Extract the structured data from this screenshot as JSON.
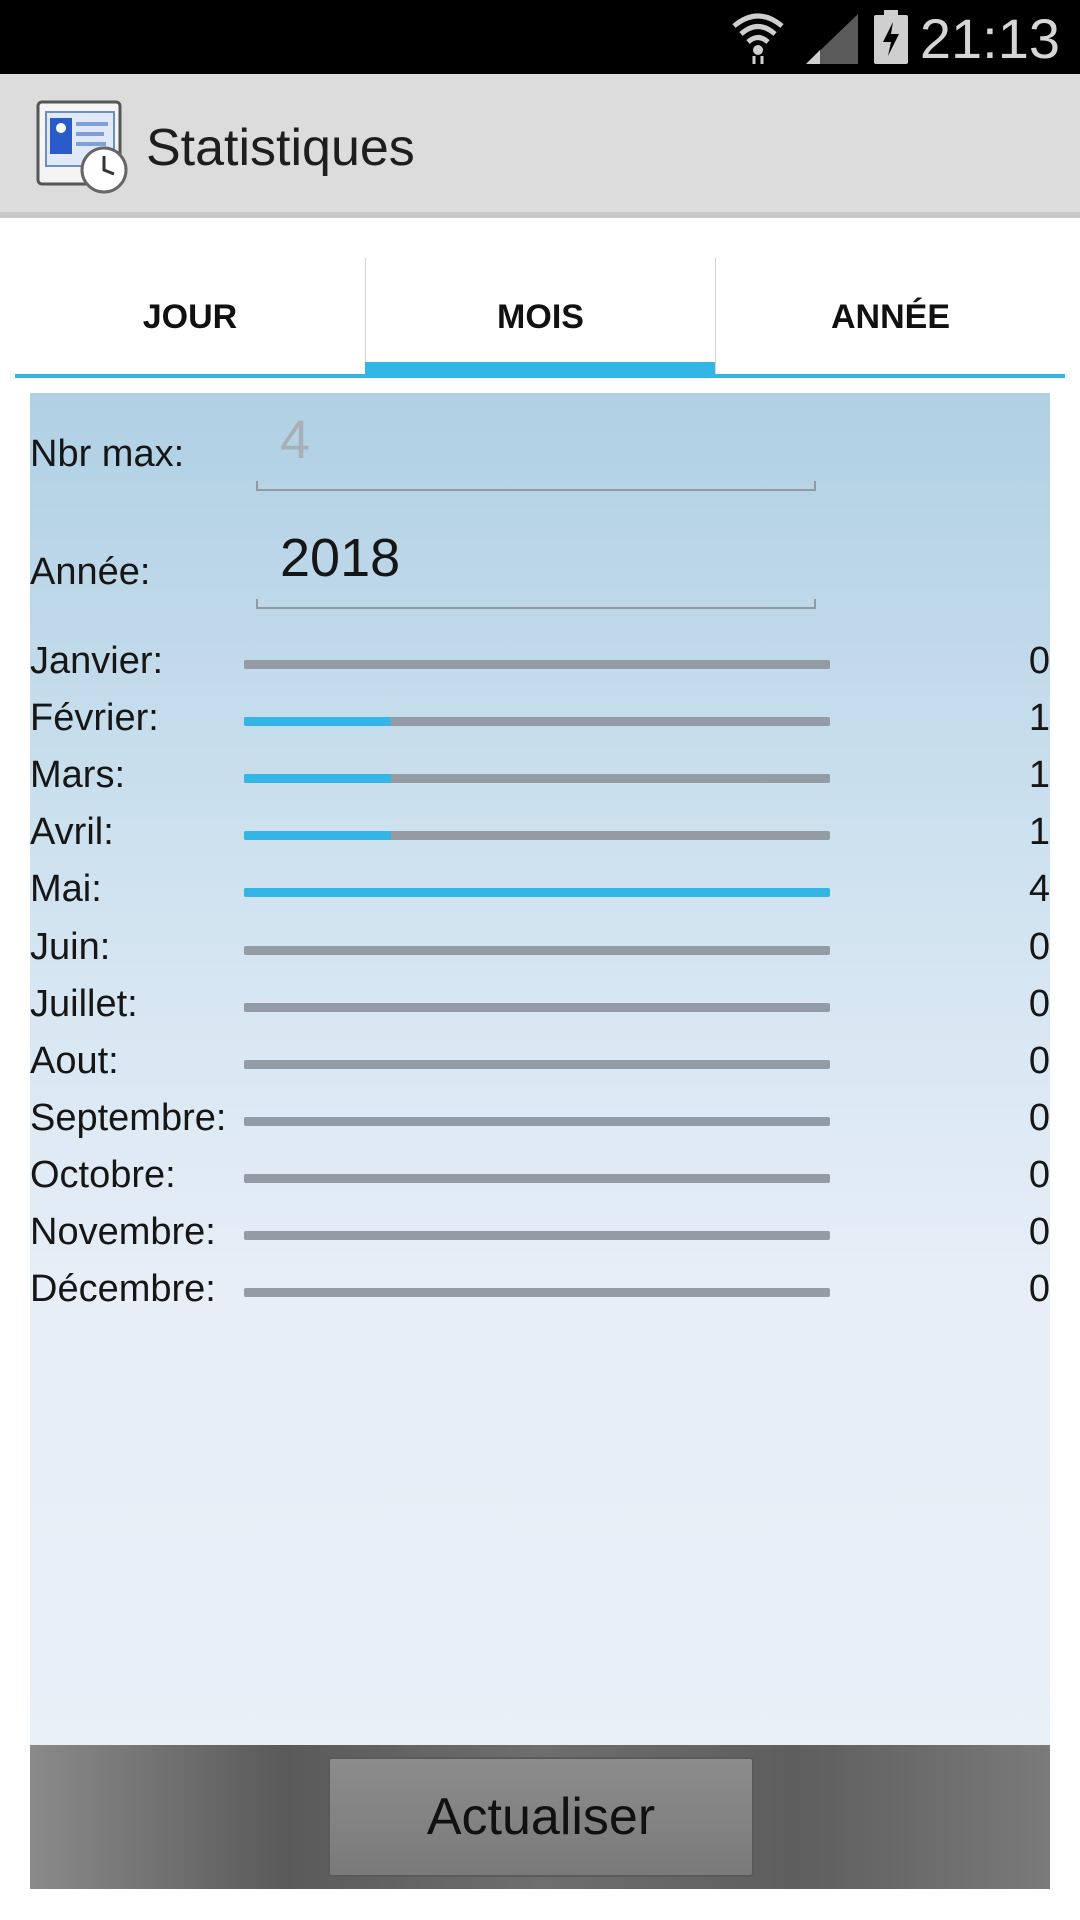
{
  "status_bar": {
    "time": "21:13",
    "icons": [
      "wifi-icon",
      "signal-icon",
      "battery-charging-icon"
    ]
  },
  "action_bar": {
    "title": "Statistiques",
    "icon": "app-icon"
  },
  "tabs": [
    {
      "label": "JOUR",
      "selected": false
    },
    {
      "label": "MOIS",
      "selected": true
    },
    {
      "label": "ANNÉE",
      "selected": false
    }
  ],
  "form": {
    "max_label": "Nbr max:",
    "max_placeholder": "4",
    "year_label": "Année:",
    "year_value": "2018"
  },
  "months": [
    {
      "label": "Janvier:",
      "count": "0",
      "fraction": 0
    },
    {
      "label": "Février:",
      "count": "1",
      "fraction": 0.25
    },
    {
      "label": "Mars:",
      "count": "1",
      "fraction": 0.25
    },
    {
      "label": "Avril:",
      "count": "1",
      "fraction": 0.25
    },
    {
      "label": "Mai:",
      "count": "4",
      "fraction": 1
    },
    {
      "label": "Juin:",
      "count": "0",
      "fraction": 0
    },
    {
      "label": "Juillet:",
      "count": "0",
      "fraction": 0
    },
    {
      "label": "Aout:",
      "count": "0",
      "fraction": 0
    },
    {
      "label": "Septembre:",
      "count": "0",
      "fraction": 0
    },
    {
      "label": "Octobre:",
      "count": "0",
      "fraction": 0
    },
    {
      "label": "Novembre:",
      "count": "0",
      "fraction": 0
    },
    {
      "label": "Décembre:",
      "count": "0",
      "fraction": 0
    }
  ],
  "button": {
    "label": "Actualiser"
  },
  "colors": {
    "accent": "#33b5e5",
    "track": "#939ca4"
  }
}
